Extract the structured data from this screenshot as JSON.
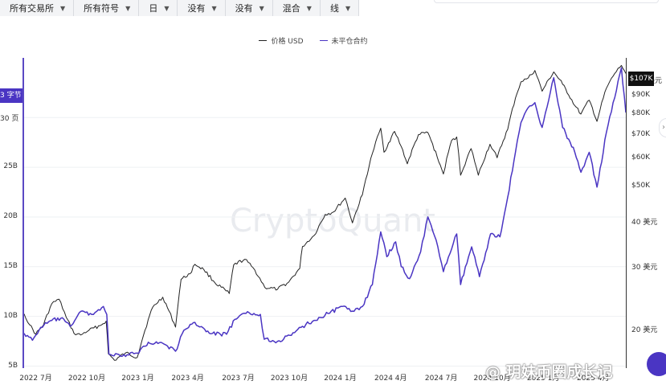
{
  "toolbar": [
    {
      "label": "所有交易所"
    },
    {
      "label": "所有符号"
    },
    {
      "label": "日"
    },
    {
      "label": "没有"
    },
    {
      "label": "没有"
    },
    {
      "label": "混合"
    },
    {
      "label": "线"
    }
  ],
  "legend": [
    {
      "label": "价格 USD",
      "color": "#222222"
    },
    {
      "label": "未平仓合约",
      "color": "#4a35c3"
    }
  ],
  "left_tag": "3 字节",
  "right_tag": "$107K",
  "watermark": "CryptoQuant",
  "credit": "@ 玥妹币圈成长记",
  "chart_data": {
    "type": "line",
    "x_range": [
      "2022-06-10",
      "2025-05-30"
    ],
    "x_tick_labels": [
      "2022 7月",
      "2022 10月",
      "2023 1月",
      "2023 4月",
      "2023 7月",
      "2023 10月",
      "2024 1月",
      "2024 4月",
      "2024 7月",
      "2024 10月",
      "2025 1月",
      "2025 4月"
    ],
    "left_axis": {
      "label": "",
      "tick_labels": [
        "5B",
        "10B",
        "15B",
        "20B",
        "25B",
        "30 页"
      ],
      "tick_values": [
        5,
        10,
        15,
        20,
        25,
        30
      ],
      "range": [
        4.8,
        36
      ]
    },
    "right_axis": {
      "label": "",
      "scale": "log",
      "tick_labels": [
        "20 美元",
        "30 美元",
        "40 美元",
        "$50K",
        "$60K",
        "$70K",
        "$80K",
        "$90K",
        "100 美元"
      ],
      "tick_values": [
        20000,
        30000,
        40000,
        50000,
        60000,
        70000,
        80000,
        90000,
        100000
      ],
      "range": [
        15500,
        115000
      ]
    },
    "series": [
      {
        "name": "价格 USD",
        "axis": "right",
        "color": "#222222",
        "points": [
          [
            "2022-06-10",
            22000
          ],
          [
            "2022-06-20",
            20500
          ],
          [
            "2022-07-01",
            19300
          ],
          [
            "2022-07-15",
            20500
          ],
          [
            "2022-07-30",
            23500
          ],
          [
            "2022-08-12",
            24200
          ],
          [
            "2022-08-25",
            21500
          ],
          [
            "2022-09-08",
            19400
          ],
          [
            "2022-09-20",
            19200
          ],
          [
            "2022-10-05",
            19800
          ],
          [
            "2022-10-25",
            20400
          ],
          [
            "2022-11-05",
            21000
          ],
          [
            "2022-11-09",
            17000
          ],
          [
            "2022-11-20",
            16300
          ],
          [
            "2022-12-10",
            17100
          ],
          [
            "2022-12-31",
            16600
          ],
          [
            "2023-01-14",
            19800
          ],
          [
            "2023-01-28",
            23000
          ],
          [
            "2023-02-15",
            24500
          ],
          [
            "2023-03-10",
            20200
          ],
          [
            "2023-03-20",
            27500
          ],
          [
            "2023-04-05",
            28500
          ],
          [
            "2023-04-14",
            30300
          ],
          [
            "2023-04-30",
            29300
          ],
          [
            "2023-05-20",
            26900
          ],
          [
            "2023-06-15",
            25100
          ],
          [
            "2023-06-23",
            30200
          ],
          [
            "2023-07-13",
            31300
          ],
          [
            "2023-07-31",
            29200
          ],
          [
            "2023-08-18",
            26100
          ],
          [
            "2023-09-10",
            25800
          ],
          [
            "2023-09-30",
            27000
          ],
          [
            "2023-10-20",
            29500
          ],
          [
            "2023-10-25",
            34000
          ],
          [
            "2023-11-15",
            36500
          ],
          [
            "2023-12-05",
            41800
          ],
          [
            "2023-12-20",
            42500
          ],
          [
            "2024-01-10",
            46500
          ],
          [
            "2024-01-23",
            39600
          ],
          [
            "2024-02-10",
            47500
          ],
          [
            "2024-02-28",
            62000
          ],
          [
            "2024-03-14",
            73000
          ],
          [
            "2024-03-20",
            62500
          ],
          [
            "2024-04-08",
            71500
          ],
          [
            "2024-04-20",
            64900
          ],
          [
            "2024-05-01",
            58000
          ],
          [
            "2024-05-21",
            70000
          ],
          [
            "2024-06-07",
            71000
          ],
          [
            "2024-06-24",
            60500
          ],
          [
            "2024-07-05",
            54300
          ],
          [
            "2024-07-20",
            67500
          ],
          [
            "2024-07-29",
            69000
          ],
          [
            "2024-08-05",
            53900
          ],
          [
            "2024-08-24",
            64000
          ],
          [
            "2024-09-06",
            53900
          ],
          [
            "2024-09-27",
            65800
          ],
          [
            "2024-10-10",
            60300
          ],
          [
            "2024-10-29",
            72500
          ],
          [
            "2024-11-12",
            88700
          ],
          [
            "2024-11-22",
            98500
          ],
          [
            "2024-12-05",
            101000
          ],
          [
            "2024-12-17",
            106000
          ],
          [
            "2024-12-30",
            92700
          ],
          [
            "2025-01-20",
            105000
          ],
          [
            "2025-02-05",
            97000
          ],
          [
            "2025-02-27",
            84500
          ],
          [
            "2025-03-10",
            80000
          ],
          [
            "2025-03-25",
            87500
          ],
          [
            "2025-04-08",
            76300
          ],
          [
            "2025-04-25",
            94500
          ],
          [
            "2025-05-10",
            104000
          ],
          [
            "2025-05-22",
            109500
          ],
          [
            "2025-05-30",
            104000
          ]
        ]
      },
      {
        "name": "未平仓合约",
        "axis": "left",
        "color": "#4a35c3",
        "points": [
          [
            "2022-06-10",
            8.3
          ],
          [
            "2022-06-25",
            7.6
          ],
          [
            "2022-07-10",
            8.9
          ],
          [
            "2022-07-30",
            9.6
          ],
          [
            "2022-08-15",
            9.8
          ],
          [
            "2022-09-01",
            9.0
          ],
          [
            "2022-09-20",
            10.5
          ],
          [
            "2022-10-10",
            10.2
          ],
          [
            "2022-10-31",
            11.0
          ],
          [
            "2022-11-06",
            10.2
          ],
          [
            "2022-11-10",
            6.2
          ],
          [
            "2022-12-01",
            6.0
          ],
          [
            "2022-12-31",
            6.3
          ],
          [
            "2023-01-20",
            7.4
          ],
          [
            "2023-02-15",
            7.3
          ],
          [
            "2023-03-10",
            6.5
          ],
          [
            "2023-03-25",
            8.6
          ],
          [
            "2023-04-14",
            9.4
          ],
          [
            "2023-05-10",
            8.3
          ],
          [
            "2023-06-10",
            8.2
          ],
          [
            "2023-06-25",
            9.7
          ],
          [
            "2023-07-15",
            10.3
          ],
          [
            "2023-08-10",
            10.2
          ],
          [
            "2023-08-17",
            7.7
          ],
          [
            "2023-09-10",
            7.5
          ],
          [
            "2023-10-05",
            8.1
          ],
          [
            "2023-10-25",
            9.0
          ],
          [
            "2023-11-15",
            9.6
          ],
          [
            "2023-12-10",
            10.3
          ],
          [
            "2024-01-05",
            11.0
          ],
          [
            "2024-01-20",
            10.5
          ],
          [
            "2024-02-10",
            11.0
          ],
          [
            "2024-02-28",
            13.2
          ],
          [
            "2024-03-14",
            18.5
          ],
          [
            "2024-03-25",
            16.0
          ],
          [
            "2024-04-10",
            17.5
          ],
          [
            "2024-04-20",
            15.0
          ],
          [
            "2024-05-05",
            13.8
          ],
          [
            "2024-05-25",
            16.5
          ],
          [
            "2024-06-07",
            20.0
          ],
          [
            "2024-06-25",
            17.0
          ],
          [
            "2024-07-05",
            14.5
          ],
          [
            "2024-07-29",
            18.3
          ],
          [
            "2024-08-05",
            13.2
          ],
          [
            "2024-08-25",
            17.0
          ],
          [
            "2024-09-08",
            14.0
          ],
          [
            "2024-09-28",
            18.3
          ],
          [
            "2024-10-15",
            18.0
          ],
          [
            "2024-10-29",
            22.0
          ],
          [
            "2024-11-12",
            26.5
          ],
          [
            "2024-11-22",
            29.5
          ],
          [
            "2024-12-05",
            31.0
          ],
          [
            "2024-12-17",
            31.5
          ],
          [
            "2024-12-30",
            29.0
          ],
          [
            "2025-01-20",
            34.0
          ],
          [
            "2025-02-05",
            29.0
          ],
          [
            "2025-02-27",
            26.5
          ],
          [
            "2025-03-10",
            24.5
          ],
          [
            "2025-03-25",
            26.5
          ],
          [
            "2025-04-08",
            23.0
          ],
          [
            "2025-04-25",
            28.5
          ],
          [
            "2025-05-10",
            32.0
          ],
          [
            "2025-05-22",
            35.0
          ],
          [
            "2025-05-30",
            30.5
          ]
        ]
      }
    ],
    "legend_position": "top-center",
    "grid": "horizontal"
  }
}
